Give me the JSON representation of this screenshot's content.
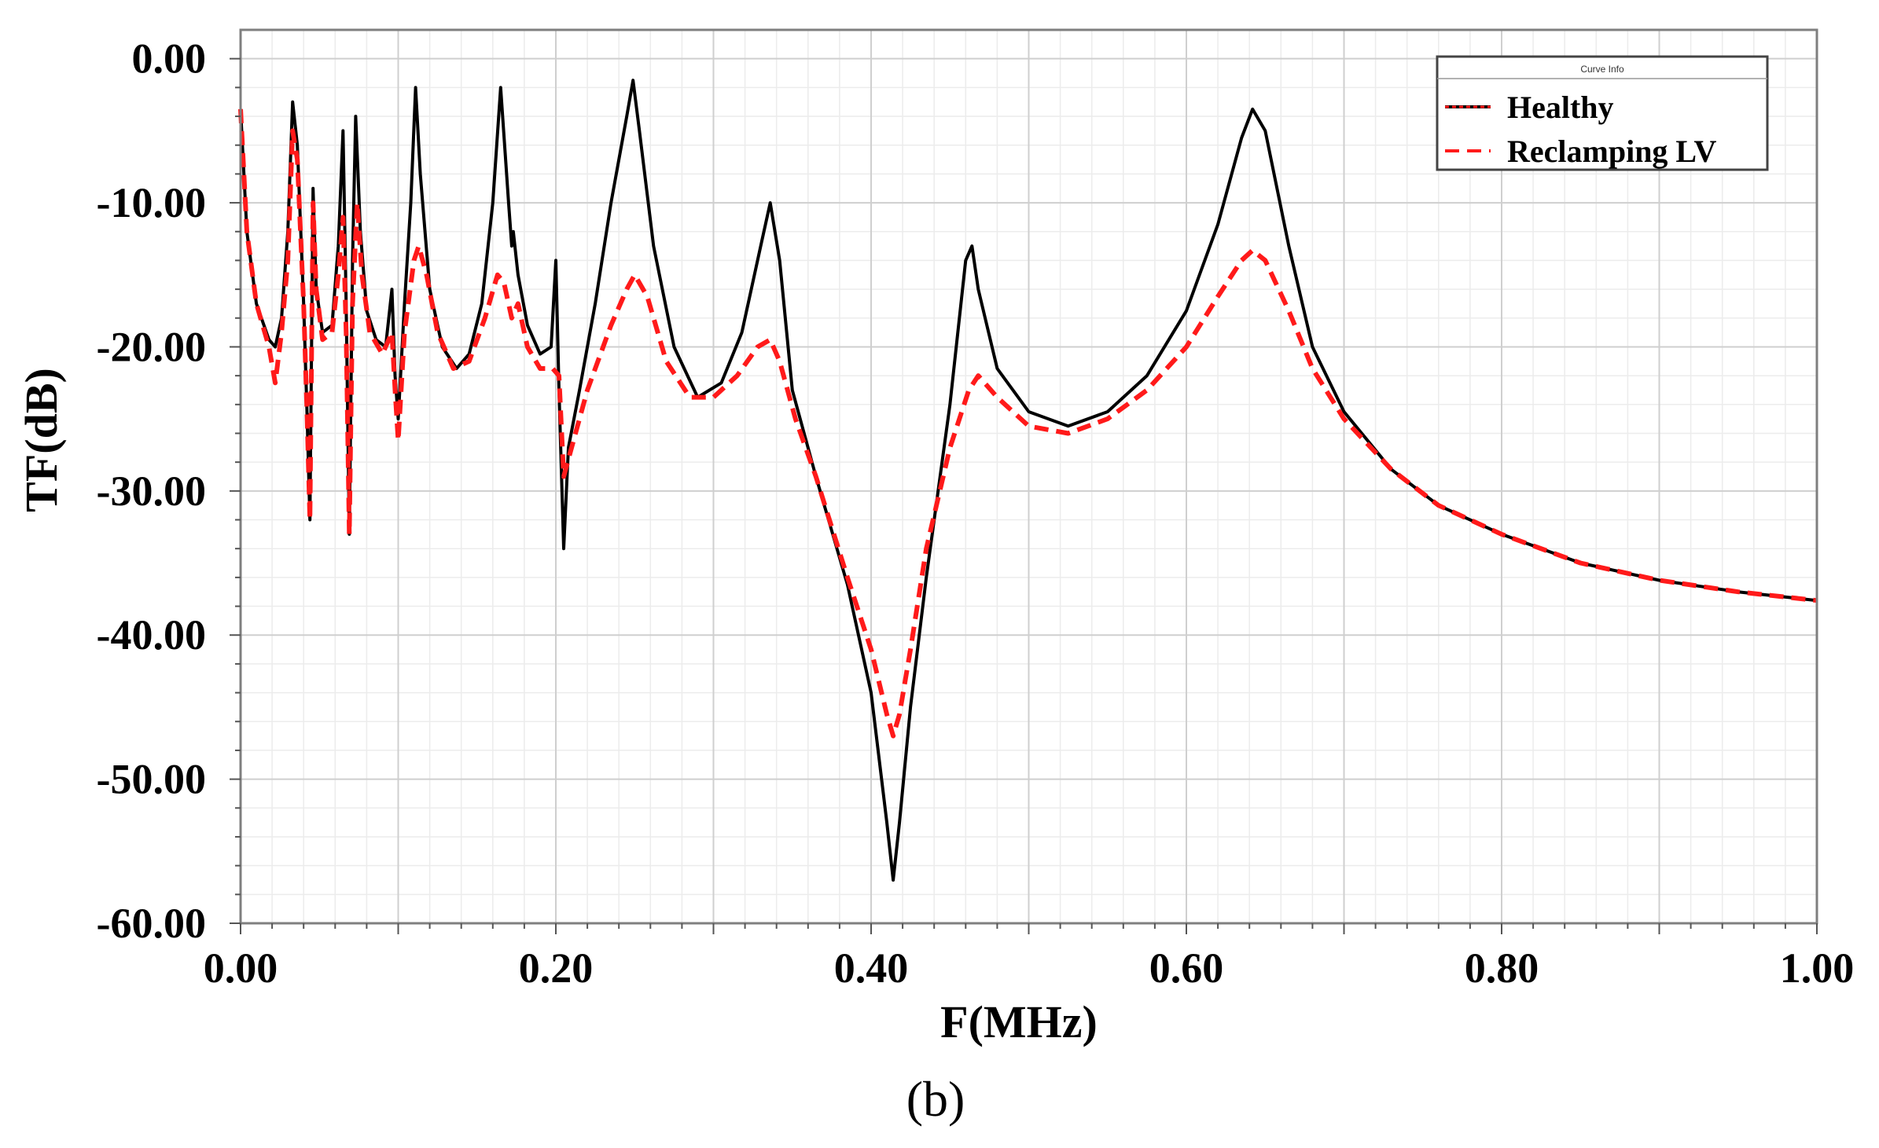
{
  "chart_data": {
    "type": "line",
    "xlabel": "F(MHz)",
    "ylabel": "TF(dB)",
    "xlim": [
      0,
      1.0
    ],
    "ylim": [
      -60,
      2
    ],
    "x_ticks": [
      "0.00",
      "0.20",
      "0.40",
      "0.60",
      "0.80",
      "1.00"
    ],
    "y_ticks": [
      "0.00",
      "-10.00",
      "-20.00",
      "-30.00",
      "-40.00",
      "-50.00",
      "-60.00"
    ],
    "grid": true,
    "legend": {
      "title": "Curve Info",
      "position": "top-right"
    },
    "caption": "(b)",
    "series": [
      {
        "name": "Healthy",
        "color": "#000000",
        "style": "solid",
        "points": [
          [
            0.0,
            -3.5
          ],
          [
            0.004,
            -12
          ],
          [
            0.01,
            -17
          ],
          [
            0.018,
            -19.5
          ],
          [
            0.022,
            -20
          ],
          [
            0.026,
            -18
          ],
          [
            0.03,
            -12
          ],
          [
            0.033,
            -3
          ],
          [
            0.036,
            -6
          ],
          [
            0.04,
            -17
          ],
          [
            0.042,
            -24
          ],
          [
            0.044,
            -32
          ],
          [
            0.046,
            -9
          ],
          [
            0.048,
            -16
          ],
          [
            0.052,
            -19
          ],
          [
            0.058,
            -18.5
          ],
          [
            0.062,
            -13
          ],
          [
            0.065,
            -5
          ],
          [
            0.067,
            -17
          ],
          [
            0.069,
            -33
          ],
          [
            0.071,
            -14
          ],
          [
            0.073,
            -4
          ],
          [
            0.076,
            -12
          ],
          [
            0.08,
            -17.5
          ],
          [
            0.086,
            -19.5
          ],
          [
            0.092,
            -20
          ],
          [
            0.096,
            -16
          ],
          [
            0.098,
            -22
          ],
          [
            0.1,
            -25
          ],
          [
            0.104,
            -17
          ],
          [
            0.108,
            -10
          ],
          [
            0.111,
            -2
          ],
          [
            0.114,
            -8
          ],
          [
            0.12,
            -16
          ],
          [
            0.128,
            -20
          ],
          [
            0.137,
            -21.5
          ],
          [
            0.145,
            -20.5
          ],
          [
            0.153,
            -17
          ],
          [
            0.16,
            -10
          ],
          [
            0.165,
            -2
          ],
          [
            0.17,
            -10
          ],
          [
            0.172,
            -13
          ],
          [
            0.173,
            -12
          ],
          [
            0.176,
            -15
          ],
          [
            0.182,
            -18.5
          ],
          [
            0.19,
            -20.5
          ],
          [
            0.197,
            -20
          ],
          [
            0.2,
            -14
          ],
          [
            0.202,
            -23
          ],
          [
            0.205,
            -34
          ],
          [
            0.208,
            -27
          ],
          [
            0.215,
            -23
          ],
          [
            0.225,
            -17
          ],
          [
            0.235,
            -10
          ],
          [
            0.245,
            -4
          ],
          [
            0.249,
            -1.5
          ],
          [
            0.253,
            -5
          ],
          [
            0.262,
            -13
          ],
          [
            0.275,
            -20
          ],
          [
            0.29,
            -23.5
          ],
          [
            0.305,
            -22.5
          ],
          [
            0.318,
            -19
          ],
          [
            0.33,
            -13
          ],
          [
            0.336,
            -10
          ],
          [
            0.342,
            -14
          ],
          [
            0.35,
            -23
          ],
          [
            0.365,
            -29
          ],
          [
            0.385,
            -36.5
          ],
          [
            0.4,
            -44
          ],
          [
            0.41,
            -53
          ],
          [
            0.414,
            -57
          ],
          [
            0.418,
            -53
          ],
          [
            0.425,
            -45
          ],
          [
            0.435,
            -36
          ],
          [
            0.45,
            -24
          ],
          [
            0.46,
            -14
          ],
          [
            0.464,
            -13
          ],
          [
            0.468,
            -16
          ],
          [
            0.48,
            -21.5
          ],
          [
            0.5,
            -24.5
          ],
          [
            0.525,
            -25.5
          ],
          [
            0.55,
            -24.5
          ],
          [
            0.575,
            -22
          ],
          [
            0.6,
            -17.5
          ],
          [
            0.62,
            -11.5
          ],
          [
            0.635,
            -5.5
          ],
          [
            0.642,
            -3.5
          ],
          [
            0.65,
            -5
          ],
          [
            0.665,
            -13
          ],
          [
            0.68,
            -20
          ],
          [
            0.7,
            -24.5
          ],
          [
            0.73,
            -28.5
          ],
          [
            0.76,
            -31
          ],
          [
            0.8,
            -33
          ],
          [
            0.85,
            -35
          ],
          [
            0.9,
            -36.2
          ],
          [
            0.95,
            -37
          ],
          [
            1.0,
            -37.6
          ]
        ]
      },
      {
        "name": "Reclamping LV",
        "color": "#ff1a1a",
        "style": "dashed",
        "points": [
          [
            0.0,
            -3.5
          ],
          [
            0.004,
            -12
          ],
          [
            0.01,
            -17
          ],
          [
            0.018,
            -20
          ],
          [
            0.022,
            -22.5
          ],
          [
            0.026,
            -19
          ],
          [
            0.03,
            -14
          ],
          [
            0.033,
            -5
          ],
          [
            0.036,
            -7
          ],
          [
            0.04,
            -17
          ],
          [
            0.042,
            -24
          ],
          [
            0.044,
            -32
          ],
          [
            0.046,
            -10
          ],
          [
            0.048,
            -16
          ],
          [
            0.052,
            -19.5
          ],
          [
            0.058,
            -19
          ],
          [
            0.062,
            -15
          ],
          [
            0.065,
            -11
          ],
          [
            0.067,
            -19
          ],
          [
            0.069,
            -33
          ],
          [
            0.071,
            -17
          ],
          [
            0.074,
            -10
          ],
          [
            0.077,
            -15
          ],
          [
            0.082,
            -19
          ],
          [
            0.09,
            -20.5
          ],
          [
            0.096,
            -19
          ],
          [
            0.098,
            -23
          ],
          [
            0.1,
            -26.5
          ],
          [
            0.104,
            -19
          ],
          [
            0.11,
            -14
          ],
          [
            0.113,
            -13
          ],
          [
            0.118,
            -15
          ],
          [
            0.125,
            -19
          ],
          [
            0.135,
            -21.5
          ],
          [
            0.145,
            -21
          ],
          [
            0.155,
            -18
          ],
          [
            0.163,
            -15
          ],
          [
            0.167,
            -15.5
          ],
          [
            0.172,
            -18
          ],
          [
            0.176,
            -17
          ],
          [
            0.182,
            -20
          ],
          [
            0.19,
            -21.5
          ],
          [
            0.198,
            -21.5
          ],
          [
            0.202,
            -22
          ],
          [
            0.205,
            -29
          ],
          [
            0.21,
            -27
          ],
          [
            0.22,
            -23
          ],
          [
            0.235,
            -18.5
          ],
          [
            0.245,
            -16
          ],
          [
            0.25,
            -15
          ],
          [
            0.258,
            -16.5
          ],
          [
            0.27,
            -21
          ],
          [
            0.285,
            -23.5
          ],
          [
            0.3,
            -23.5
          ],
          [
            0.315,
            -22
          ],
          [
            0.328,
            -20
          ],
          [
            0.336,
            -19.5
          ],
          [
            0.342,
            -21
          ],
          [
            0.352,
            -25
          ],
          [
            0.365,
            -29
          ],
          [
            0.385,
            -36
          ],
          [
            0.4,
            -41
          ],
          [
            0.41,
            -45.5
          ],
          [
            0.414,
            -47
          ],
          [
            0.418,
            -45.5
          ],
          [
            0.425,
            -41
          ],
          [
            0.435,
            -34
          ],
          [
            0.45,
            -27
          ],
          [
            0.462,
            -23
          ],
          [
            0.468,
            -22
          ],
          [
            0.48,
            -23.5
          ],
          [
            0.5,
            -25.5
          ],
          [
            0.525,
            -26
          ],
          [
            0.55,
            -25
          ],
          [
            0.575,
            -23
          ],
          [
            0.6,
            -20
          ],
          [
            0.62,
            -16.5
          ],
          [
            0.635,
            -14
          ],
          [
            0.642,
            -13.3
          ],
          [
            0.65,
            -14
          ],
          [
            0.665,
            -17.5
          ],
          [
            0.68,
            -21.5
          ],
          [
            0.7,
            -25
          ],
          [
            0.73,
            -28.5
          ],
          [
            0.76,
            -31
          ],
          [
            0.8,
            -33
          ],
          [
            0.85,
            -35
          ],
          [
            0.9,
            -36.2
          ],
          [
            0.95,
            -37
          ],
          [
            1.0,
            -37.6
          ]
        ]
      }
    ]
  }
}
